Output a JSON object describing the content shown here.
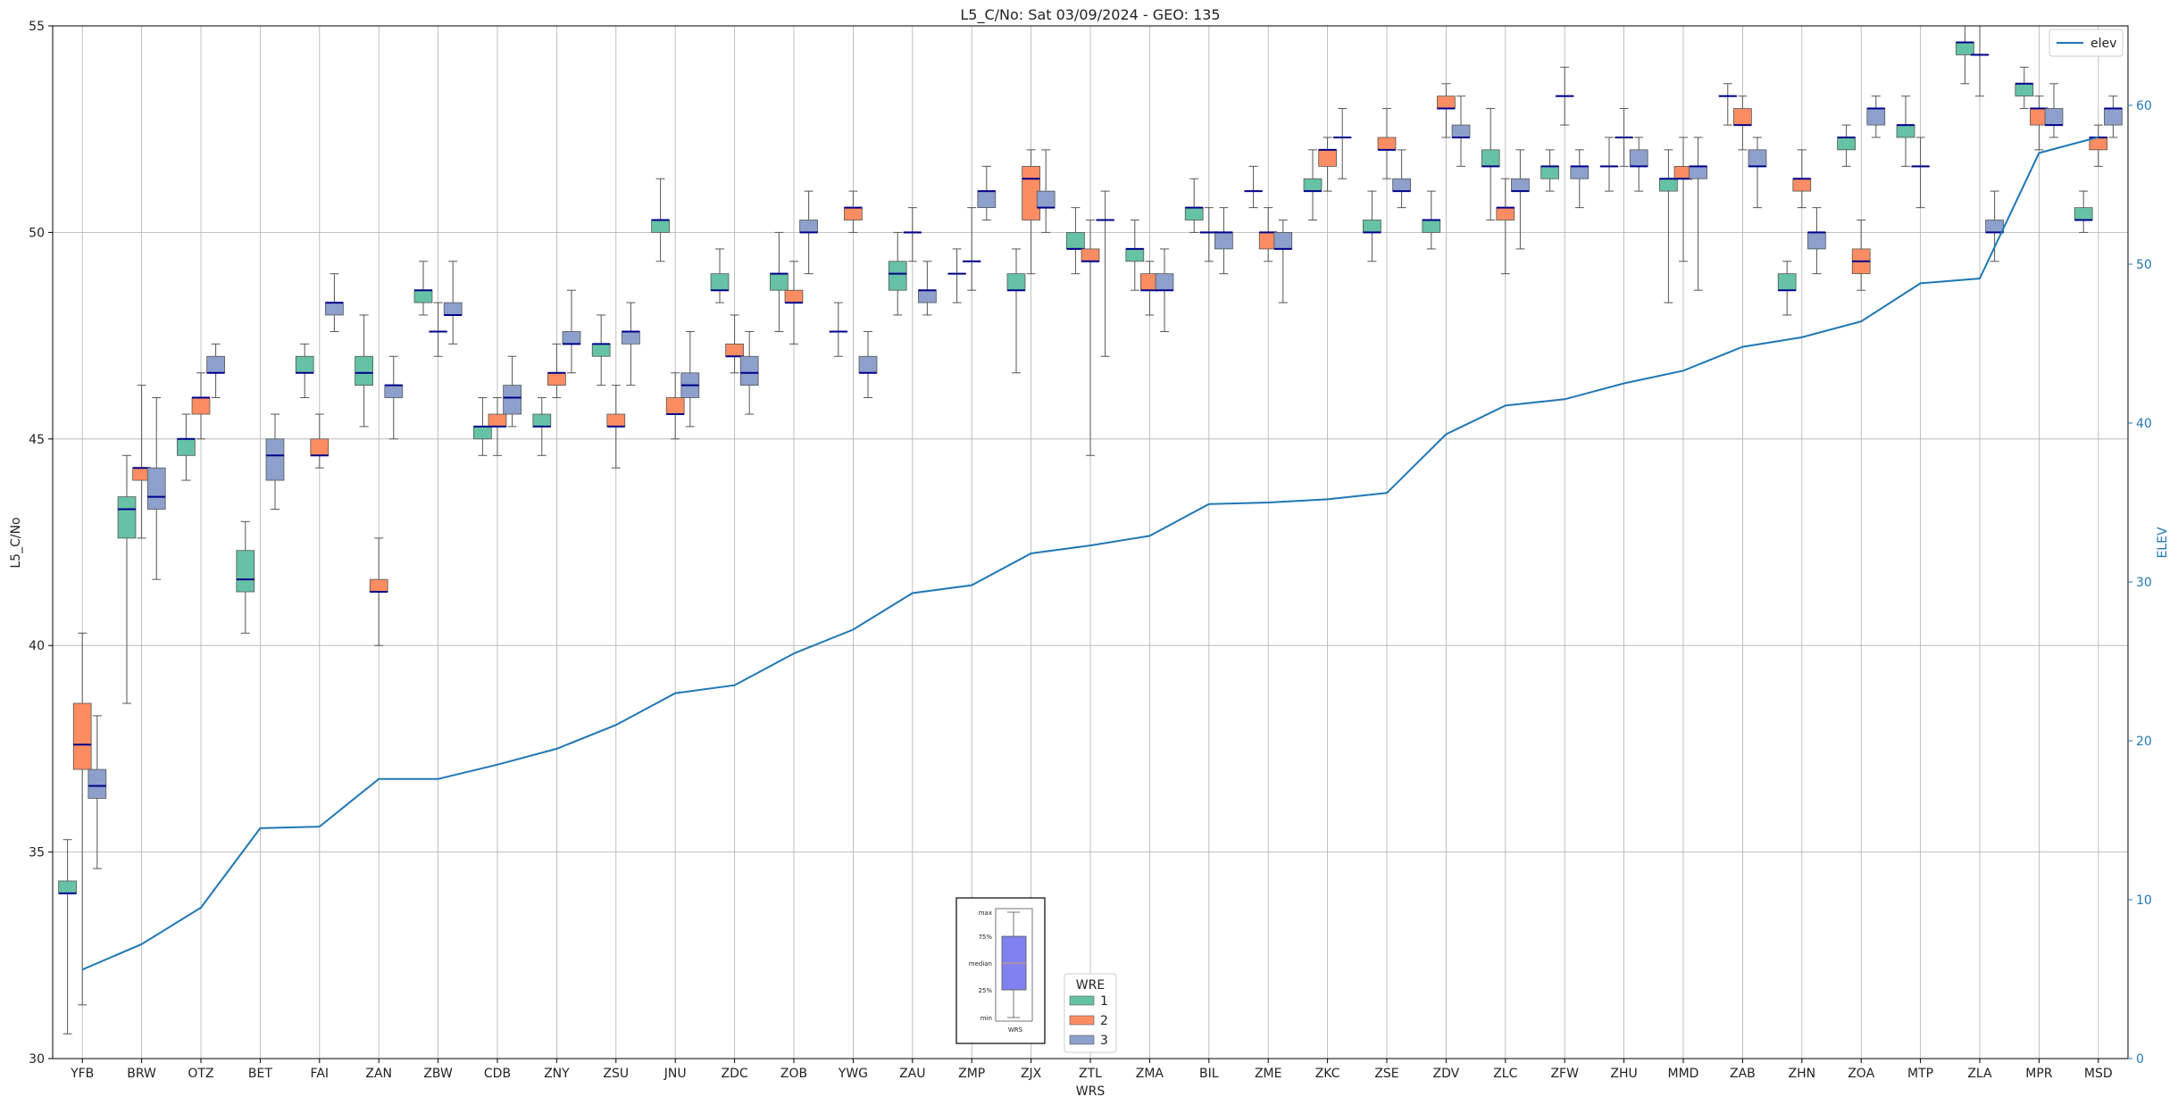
{
  "chart_data": {
    "type": "box",
    "title": "L5_C/No: Sat 03/09/2024 - GEO: 135",
    "xlabel": "WRS",
    "ylabel": "L5_C/No",
    "y2label": "ELEV",
    "ylim": [
      30,
      55
    ],
    "y2lim": [
      0,
      65
    ],
    "yticks": [
      30,
      35,
      40,
      45,
      50,
      55
    ],
    "y2ticks": [
      0,
      10,
      20,
      30,
      40,
      50,
      60
    ],
    "grid": true,
    "categories": [
      "YFB",
      "BRW",
      "OTZ",
      "BET",
      "FAI",
      "ZAN",
      "ZBW",
      "CDB",
      "ZNY",
      "ZSU",
      "JNU",
      "ZDC",
      "ZOB",
      "YWG",
      "ZAU",
      "ZMP",
      "ZJX",
      "ZTL",
      "ZMA",
      "BIL",
      "ZME",
      "ZKC",
      "ZSE",
      "ZDV",
      "ZLC",
      "ZFW",
      "ZHU",
      "MMD",
      "ZAB",
      "ZHN",
      "ZOA",
      "MTP",
      "ZLA",
      "MPR",
      "MSD"
    ],
    "wre_colors": {
      "1": "#66c2a5",
      "2": "#fc8d62",
      "3": "#8da0cb"
    },
    "median_color": "#00008b",
    "line_color": "#1f77b4",
    "legend_line": {
      "label": "elev",
      "position": "top-right"
    },
    "legend_wre": {
      "title": "WRE",
      "entries": [
        "1",
        "2",
        "3"
      ],
      "position": "bottom-center"
    },
    "inset_key": {
      "labels": [
        "max",
        "75%",
        "median",
        "25%",
        "min"
      ],
      "xlabel": "WRS"
    },
    "boxes": [
      {
        "cat": "YFB",
        "wre": "1",
        "min": 30.6,
        "q1": 34.0,
        "median": 34.0,
        "q3": 34.3,
        "max": 35.3
      },
      {
        "cat": "YFB",
        "wre": "2",
        "min": 31.3,
        "q1": 37.0,
        "median": 37.6,
        "q3": 38.6,
        "max": 40.3
      },
      {
        "cat": "YFB",
        "wre": "3",
        "min": 34.6,
        "q1": 36.3,
        "median": 36.6,
        "q3": 37.0,
        "max": 38.3
      },
      {
        "cat": "BRW",
        "wre": "1",
        "min": 38.6,
        "q1": 42.6,
        "median": 43.3,
        "q3": 43.6,
        "max": 44.6
      },
      {
        "cat": "BRW",
        "wre": "2",
        "min": 42.6,
        "q1": 44.0,
        "median": 44.3,
        "q3": 44.3,
        "max": 46.3
      },
      {
        "cat": "BRW",
        "wre": "3",
        "min": 41.6,
        "q1": 43.3,
        "median": 43.6,
        "q3": 44.3,
        "max": 46.0
      },
      {
        "cat": "OTZ",
        "wre": "1",
        "min": 44.0,
        "q1": 44.6,
        "median": 45.0,
        "q3": 45.0,
        "max": 45.6
      },
      {
        "cat": "OTZ",
        "wre": "2",
        "min": 45.0,
        "q1": 45.6,
        "median": 46.0,
        "q3": 46.0,
        "max": 46.6
      },
      {
        "cat": "OTZ",
        "wre": "3",
        "min": 46.0,
        "q1": 46.6,
        "median": 46.6,
        "q3": 47.0,
        "max": 47.3
      },
      {
        "cat": "BET",
        "wre": "1",
        "min": 40.3,
        "q1": 41.3,
        "median": 41.6,
        "q3": 42.3,
        "max": 43.0
      },
      {
        "cat": "BET",
        "wre": "3",
        "min": 43.3,
        "q1": 44.0,
        "median": 44.6,
        "q3": 45.0,
        "max": 45.6
      },
      {
        "cat": "FAI",
        "wre": "1",
        "min": 46.0,
        "q1": 46.6,
        "median": 46.6,
        "q3": 47.0,
        "max": 47.3
      },
      {
        "cat": "FAI",
        "wre": "2",
        "min": 44.3,
        "q1": 44.6,
        "median": 44.6,
        "q3": 45.0,
        "max": 45.6
      },
      {
        "cat": "FAI",
        "wre": "3",
        "min": 47.6,
        "q1": 48.0,
        "median": 48.3,
        "q3": 48.3,
        "max": 49.0
      },
      {
        "cat": "ZAN",
        "wre": "1",
        "min": 45.3,
        "q1": 46.3,
        "median": 46.6,
        "q3": 47.0,
        "max": 48.0
      },
      {
        "cat": "ZAN",
        "wre": "2",
        "min": 40.0,
        "q1": 41.3,
        "median": 41.3,
        "q3": 41.6,
        "max": 42.6
      },
      {
        "cat": "ZAN",
        "wre": "3",
        "min": 45.0,
        "q1": 46.0,
        "median": 46.3,
        "q3": 46.3,
        "max": 47.0
      },
      {
        "cat": "ZBW",
        "wre": "1",
        "min": 48.0,
        "q1": 48.3,
        "median": 48.6,
        "q3": 48.6,
        "max": 49.3
      },
      {
        "cat": "ZBW",
        "wre": "2",
        "min": 47.0,
        "q1": 47.6,
        "median": 47.6,
        "q3": 47.6,
        "max": 48.3
      },
      {
        "cat": "ZBW",
        "wre": "3",
        "min": 47.3,
        "q1": 48.0,
        "median": 48.0,
        "q3": 48.3,
        "max": 49.3
      },
      {
        "cat": "CDB",
        "wre": "1",
        "min": 44.6,
        "q1": 45.0,
        "median": 45.3,
        "q3": 45.3,
        "max": 46.0
      },
      {
        "cat": "CDB",
        "wre": "2",
        "min": 44.6,
        "q1": 45.3,
        "median": 45.3,
        "q3": 45.6,
        "max": 46.0
      },
      {
        "cat": "CDB",
        "wre": "3",
        "min": 45.3,
        "q1": 45.6,
        "median": 46.0,
        "q3": 46.3,
        "max": 47.0
      },
      {
        "cat": "ZNY",
        "wre": "1",
        "min": 44.6,
        "q1": 45.3,
        "median": 45.3,
        "q3": 45.6,
        "max": 46.0
      },
      {
        "cat": "ZNY",
        "wre": "2",
        "min": 46.0,
        "q1": 46.3,
        "median": 46.6,
        "q3": 46.6,
        "max": 47.3
      },
      {
        "cat": "ZNY",
        "wre": "3",
        "min": 46.6,
        "q1": 47.3,
        "median": 47.3,
        "q3": 47.6,
        "max": 48.6
      },
      {
        "cat": "ZSU",
        "wre": "1",
        "min": 46.3,
        "q1": 47.0,
        "median": 47.3,
        "q3": 47.3,
        "max": 48.0
      },
      {
        "cat": "ZSU",
        "wre": "2",
        "min": 44.3,
        "q1": 45.3,
        "median": 45.3,
        "q3": 45.6,
        "max": 46.3
      },
      {
        "cat": "ZSU",
        "wre": "3",
        "min": 46.3,
        "q1": 47.3,
        "median": 47.6,
        "q3": 47.6,
        "max": 48.3
      },
      {
        "cat": "JNU",
        "wre": "1",
        "min": 49.3,
        "q1": 50.0,
        "median": 50.3,
        "q3": 50.3,
        "max": 51.3
      },
      {
        "cat": "JNU",
        "wre": "2",
        "min": 45.0,
        "q1": 45.6,
        "median": 45.6,
        "q3": 46.0,
        "max": 46.6
      },
      {
        "cat": "JNU",
        "wre": "3",
        "min": 45.3,
        "q1": 46.0,
        "median": 46.3,
        "q3": 46.6,
        "max": 47.6
      },
      {
        "cat": "ZDC",
        "wre": "1",
        "min": 48.3,
        "q1": 48.6,
        "median": 48.6,
        "q3": 49.0,
        "max": 49.6
      },
      {
        "cat": "ZDC",
        "wre": "2",
        "min": 46.6,
        "q1": 47.0,
        "median": 47.0,
        "q3": 47.3,
        "max": 48.0
      },
      {
        "cat": "ZDC",
        "wre": "3",
        "min": 45.6,
        "q1": 46.3,
        "median": 46.6,
        "q3": 47.0,
        "max": 47.6
      },
      {
        "cat": "ZOB",
        "wre": "1",
        "min": 47.6,
        "q1": 48.6,
        "median": 49.0,
        "q3": 49.0,
        "max": 50.0
      },
      {
        "cat": "ZOB",
        "wre": "2",
        "min": 47.3,
        "q1": 48.3,
        "median": 48.3,
        "q3": 48.6,
        "max": 49.3
      },
      {
        "cat": "ZOB",
        "wre": "3",
        "min": 49.0,
        "q1": 50.0,
        "median": 50.0,
        "q3": 50.3,
        "max": 51.0
      },
      {
        "cat": "YWG",
        "wre": "2",
        "min": 50.0,
        "q1": 50.3,
        "median": 50.6,
        "q3": 50.6,
        "max": 51.0
      },
      {
        "cat": "YWG",
        "wre": "1",
        "min": 47.0,
        "q1": 47.6,
        "median": 47.6,
        "q3": 47.6,
        "max": 48.3
      },
      {
        "cat": "YWG",
        "wre": "3",
        "min": 46.0,
        "q1": 46.6,
        "median": 46.6,
        "q3": 47.0,
        "max": 47.6
      },
      {
        "cat": "ZAU",
        "wre": "1",
        "min": 48.0,
        "q1": 48.6,
        "median": 49.0,
        "q3": 49.3,
        "max": 50.0
      },
      {
        "cat": "ZAU",
        "wre": "2",
        "min": 49.3,
        "q1": 50.0,
        "median": 50.0,
        "q3": 50.0,
        "max": 50.6
      },
      {
        "cat": "ZAU",
        "wre": "3",
        "min": 48.0,
        "q1": 48.3,
        "median": 48.6,
        "q3": 48.6,
        "max": 49.3
      },
      {
        "cat": "ZMP",
        "wre": "1",
        "min": 48.3,
        "q1": 49.0,
        "median": 49.0,
        "q3": 49.0,
        "max": 49.6
      },
      {
        "cat": "ZMP",
        "wre": "2",
        "min": 48.6,
        "q1": 49.3,
        "median": 49.3,
        "q3": 49.3,
        "max": 50.6
      },
      {
        "cat": "ZMP",
        "wre": "3",
        "min": 50.3,
        "q1": 50.6,
        "median": 51.0,
        "q3": 51.0,
        "max": 51.6
      },
      {
        "cat": "ZJX",
        "wre": "1",
        "min": 46.6,
        "q1": 48.6,
        "median": 48.6,
        "q3": 49.0,
        "max": 49.6
      },
      {
        "cat": "ZJX",
        "wre": "2",
        "min": 49.0,
        "q1": 50.3,
        "median": 51.3,
        "q3": 51.6,
        "max": 52.0
      },
      {
        "cat": "ZJX",
        "wre": "3",
        "min": 50.0,
        "q1": 50.6,
        "median": 50.6,
        "q3": 51.0,
        "max": 52.0
      },
      {
        "cat": "ZTL",
        "wre": "1",
        "min": 49.0,
        "q1": 49.6,
        "median": 49.6,
        "q3": 50.0,
        "max": 50.6
      },
      {
        "cat": "ZTL",
        "wre": "2",
        "min": 44.6,
        "q1": 49.3,
        "median": 49.3,
        "q3": 49.6,
        "max": 50.3
      },
      {
        "cat": "ZTL",
        "wre": "3",
        "min": 47.0,
        "q1": 50.3,
        "median": 50.3,
        "q3": 50.3,
        "max": 51.0
      },
      {
        "cat": "ZMA",
        "wre": "1",
        "min": 48.6,
        "q1": 49.3,
        "median": 49.6,
        "q3": 49.6,
        "max": 50.3
      },
      {
        "cat": "ZMA",
        "wre": "2",
        "min": 48.0,
        "q1": 48.6,
        "median": 48.6,
        "q3": 49.0,
        "max": 49.3
      },
      {
        "cat": "ZMA",
        "wre": "3",
        "min": 47.6,
        "q1": 48.6,
        "median": 48.6,
        "q3": 49.0,
        "max": 49.6
      },
      {
        "cat": "BIL",
        "wre": "1",
        "min": 50.0,
        "q1": 50.3,
        "median": 50.6,
        "q3": 50.6,
        "max": 51.3
      },
      {
        "cat": "BIL",
        "wre": "2",
        "min": 49.3,
        "q1": 50.0,
        "median": 50.0,
        "q3": 50.0,
        "max": 50.6
      },
      {
        "cat": "BIL",
        "wre": "3",
        "min": 49.0,
        "q1": 49.6,
        "median": 50.0,
        "q3": 50.0,
        "max": 50.6
      },
      {
        "cat": "ZME",
        "wre": "1",
        "min": 50.6,
        "q1": 51.0,
        "median": 51.0,
        "q3": 51.0,
        "max": 51.6
      },
      {
        "cat": "ZME",
        "wre": "2",
        "min": 49.3,
        "q1": 49.6,
        "median": 50.0,
        "q3": 50.0,
        "max": 50.6
      },
      {
        "cat": "ZME",
        "wre": "3",
        "min": 48.3,
        "q1": 49.6,
        "median": 49.6,
        "q3": 50.0,
        "max": 50.3
      },
      {
        "cat": "ZKC",
        "wre": "1",
        "min": 50.3,
        "q1": 51.0,
        "median": 51.0,
        "q3": 51.3,
        "max": 52.0
      },
      {
        "cat": "ZKC",
        "wre": "2",
        "min": 51.0,
        "q1": 51.6,
        "median": 52.0,
        "q3": 52.0,
        "max": 52.3
      },
      {
        "cat": "ZKC",
        "wre": "3",
        "min": 51.3,
        "q1": 52.3,
        "median": 52.3,
        "q3": 52.3,
        "max": 53.0
      },
      {
        "cat": "ZSE",
        "wre": "1",
        "min": 49.3,
        "q1": 50.0,
        "median": 50.0,
        "q3": 50.3,
        "max": 51.0
      },
      {
        "cat": "ZSE",
        "wre": "2",
        "min": 51.3,
        "q1": 52.0,
        "median": 52.0,
        "q3": 52.3,
        "max": 53.0
      },
      {
        "cat": "ZSE",
        "wre": "3",
        "min": 50.6,
        "q1": 51.0,
        "median": 51.0,
        "q3": 51.3,
        "max": 52.0
      },
      {
        "cat": "ZDV",
        "wre": "1",
        "min": 49.6,
        "q1": 50.0,
        "median": 50.3,
        "q3": 50.3,
        "max": 51.0
      },
      {
        "cat": "ZDV",
        "wre": "2",
        "min": 52.3,
        "q1": 53.0,
        "median": 53.0,
        "q3": 53.3,
        "max": 53.6
      },
      {
        "cat": "ZDV",
        "wre": "3",
        "min": 51.6,
        "q1": 52.3,
        "median": 52.3,
        "q3": 52.6,
        "max": 53.3
      },
      {
        "cat": "ZLC",
        "wre": "1",
        "min": 50.3,
        "q1": 51.6,
        "median": 51.6,
        "q3": 52.0,
        "max": 53.0
      },
      {
        "cat": "ZLC",
        "wre": "2",
        "min": 49.0,
        "q1": 50.3,
        "median": 50.6,
        "q3": 50.6,
        "max": 51.3
      },
      {
        "cat": "ZLC",
        "wre": "3",
        "min": 49.6,
        "q1": 51.0,
        "median": 51.0,
        "q3": 51.3,
        "max": 52.0
      },
      {
        "cat": "ZFW",
        "wre": "1",
        "min": 51.0,
        "q1": 51.3,
        "median": 51.6,
        "q3": 51.6,
        "max": 52.0
      },
      {
        "cat": "ZFW",
        "wre": "2",
        "min": 52.6,
        "q1": 53.3,
        "median": 53.3,
        "q3": 53.3,
        "max": 54.0
      },
      {
        "cat": "ZFW",
        "wre": "3",
        "min": 50.6,
        "q1": 51.3,
        "median": 51.6,
        "q3": 51.6,
        "max": 52.0
      },
      {
        "cat": "ZHU",
        "wre": "1",
        "min": 51.0,
        "q1": 51.6,
        "median": 51.6,
        "q3": 51.6,
        "max": 52.3
      },
      {
        "cat": "ZHU",
        "wre": "2",
        "min": 51.6,
        "q1": 52.3,
        "median": 52.3,
        "q3": 52.3,
        "max": 53.0
      },
      {
        "cat": "ZHU",
        "wre": "3",
        "min": 51.0,
        "q1": 51.6,
        "median": 51.6,
        "q3": 52.0,
        "max": 52.3
      },
      {
        "cat": "MMD",
        "wre": "1",
        "min": 48.3,
        "q1": 51.0,
        "median": 51.3,
        "q3": 51.3,
        "max": 52.0
      },
      {
        "cat": "MMD",
        "wre": "2",
        "min": 49.3,
        "q1": 51.3,
        "median": 51.3,
        "q3": 51.6,
        "max": 52.3
      },
      {
        "cat": "MMD",
        "wre": "3",
        "min": 48.6,
        "q1": 51.3,
        "median": 51.6,
        "q3": 51.6,
        "max": 52.3
      },
      {
        "cat": "ZAB",
        "wre": "1",
        "min": 52.6,
        "q1": 53.3,
        "median": 53.3,
        "q3": 53.3,
        "max": 53.6
      },
      {
        "cat": "ZAB",
        "wre": "2",
        "min": 52.0,
        "q1": 52.6,
        "median": 52.6,
        "q3": 53.0,
        "max": 53.3
      },
      {
        "cat": "ZAB",
        "wre": "3",
        "min": 50.6,
        "q1": 51.6,
        "median": 51.6,
        "q3": 52.0,
        "max": 52.3
      },
      {
        "cat": "ZHN",
        "wre": "1",
        "min": 48.0,
        "q1": 48.6,
        "median": 48.6,
        "q3": 49.0,
        "max": 49.3
      },
      {
        "cat": "ZHN",
        "wre": "2",
        "min": 50.6,
        "q1": 51.0,
        "median": 51.3,
        "q3": 51.3,
        "max": 52.0
      },
      {
        "cat": "ZHN",
        "wre": "3",
        "min": 49.0,
        "q1": 49.6,
        "median": 50.0,
        "q3": 50.0,
        "max": 50.6
      },
      {
        "cat": "ZOA",
        "wre": "1",
        "min": 51.6,
        "q1": 52.0,
        "median": 52.3,
        "q3": 52.3,
        "max": 52.6
      },
      {
        "cat": "ZOA",
        "wre": "2",
        "min": 48.6,
        "q1": 49.0,
        "median": 49.3,
        "q3": 49.6,
        "max": 50.3
      },
      {
        "cat": "ZOA",
        "wre": "3",
        "min": 52.3,
        "q1": 52.6,
        "median": 53.0,
        "q3": 53.0,
        "max": 53.3
      },
      {
        "cat": "MTP",
        "wre": "1",
        "min": 51.6,
        "q1": 52.3,
        "median": 52.6,
        "q3": 52.6,
        "max": 53.3
      },
      {
        "cat": "MTP",
        "wre": "2",
        "min": 50.6,
        "q1": 51.6,
        "median": 51.6,
        "q3": 51.6,
        "max": 52.3
      },
      {
        "cat": "ZLA",
        "wre": "1",
        "min": 53.6,
        "q1": 54.3,
        "median": 54.6,
        "q3": 54.6,
        "max": 55.0
      },
      {
        "cat": "ZLA",
        "wre": "2",
        "min": 53.3,
        "q1": 54.3,
        "median": 54.3,
        "q3": 54.3,
        "max": 55.0
      },
      {
        "cat": "ZLA",
        "wre": "3",
        "min": 49.3,
        "q1": 50.0,
        "median": 50.0,
        "q3": 50.3,
        "max": 51.0
      },
      {
        "cat": "MPR",
        "wre": "1",
        "min": 53.0,
        "q1": 53.3,
        "median": 53.6,
        "q3": 53.6,
        "max": 54.0
      },
      {
        "cat": "MPR",
        "wre": "2",
        "min": 52.0,
        "q1": 52.6,
        "median": 53.0,
        "q3": 53.0,
        "max": 53.3
      },
      {
        "cat": "MPR",
        "wre": "3",
        "min": 52.3,
        "q1": 52.6,
        "median": 52.6,
        "q3": 53.0,
        "max": 53.6
      },
      {
        "cat": "MSD",
        "wre": "1",
        "min": 50.0,
        "q1": 50.3,
        "median": 50.3,
        "q3": 50.6,
        "max": 51.0
      },
      {
        "cat": "MSD",
        "wre": "2",
        "min": 51.6,
        "q1": 52.0,
        "median": 52.3,
        "q3": 52.3,
        "max": 52.6
      },
      {
        "cat": "MSD",
        "wre": "3",
        "min": 52.3,
        "q1": 52.6,
        "median": 53.0,
        "q3": 53.0,
        "max": 53.3
      }
    ],
    "elev": [
      5.6,
      7.2,
      9.5,
      14.5,
      14.6,
      17.6,
      17.6,
      18.5,
      19.5,
      21.0,
      23.0,
      23.5,
      25.5,
      27.0,
      29.3,
      29.8,
      31.8,
      32.3,
      32.9,
      34.9,
      35.0,
      35.2,
      35.6,
      39.3,
      41.1,
      41.5,
      42.5,
      43.3,
      44.8,
      45.4,
      46.4,
      48.8,
      49.1,
      57.0,
      58.0
    ]
  }
}
